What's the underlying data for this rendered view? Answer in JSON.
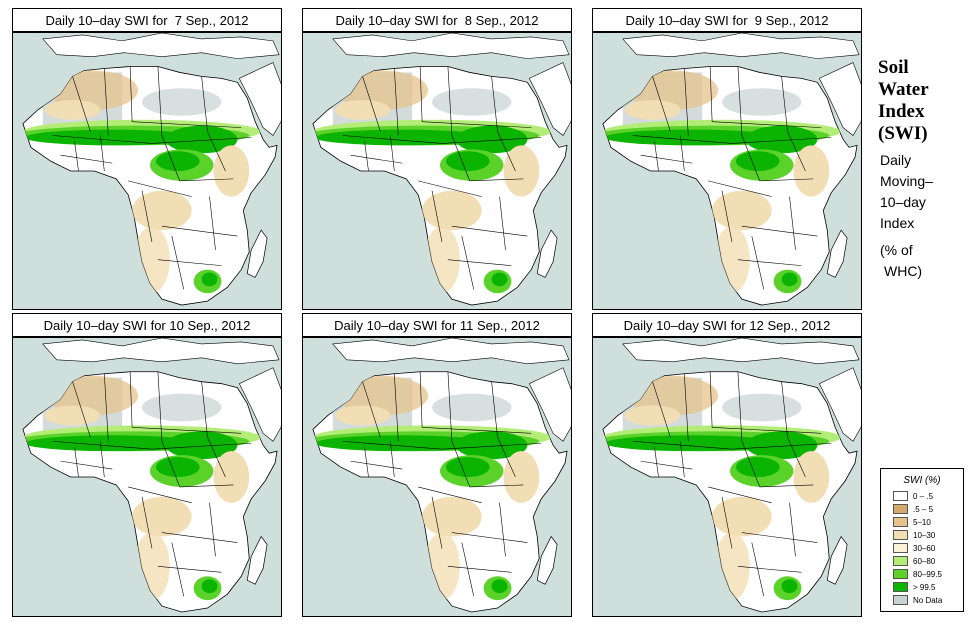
{
  "panels": [
    {
      "title": "Daily 10–day SWI for  7 Sep., 2012"
    },
    {
      "title": "Daily 10–day SWI for  8 Sep., 2012"
    },
    {
      "title": "Daily 10–day SWI for  9 Sep., 2012"
    },
    {
      "title": "Daily 10–day SWI for 10 Sep., 2012"
    },
    {
      "title": "Daily 10–day SWI for 11 Sep., 2012"
    },
    {
      "title": "Daily 10–day SWI for 12 Sep., 2012"
    }
  ],
  "side": {
    "title_lines": [
      "Soil",
      "Water",
      "Index",
      "(SWI)"
    ],
    "desc_lines": [
      "Daily",
      "Moving–",
      "10–day",
      "Index"
    ],
    "unit_lines": [
      "(% of",
      "WHC)"
    ]
  },
  "legend": {
    "title": "SWI (%)",
    "items": [
      {
        "label": "0 – .5",
        "color": "#ffffff"
      },
      {
        "label": ".5 – 5",
        "color": "#d2aa6e"
      },
      {
        "label": "5–10",
        "color": "#e6c38c"
      },
      {
        "label": "10–30",
        "color": "#f2deb4"
      },
      {
        "label": "30–60",
        "color": "#fbf2d5"
      },
      {
        "label": "60–80",
        "color": "#b4ec78"
      },
      {
        "label": "80–99.5",
        "color": "#5ad22a"
      },
      {
        "label": "> 99.5",
        "color": "#0ab400"
      },
      {
        "label": "No Data",
        "color": "#c8d2d2"
      }
    ]
  },
  "colors": {
    "ocean": "#cfe0dc",
    "land_dry": "#ffffff",
    "no_data": "#c8d2d2",
    "wet": "#0ab400",
    "moist": "#5ad22a",
    "semi": "#b4ec78",
    "arid": "#e6c38c",
    "sandy": "#f2deb4"
  }
}
